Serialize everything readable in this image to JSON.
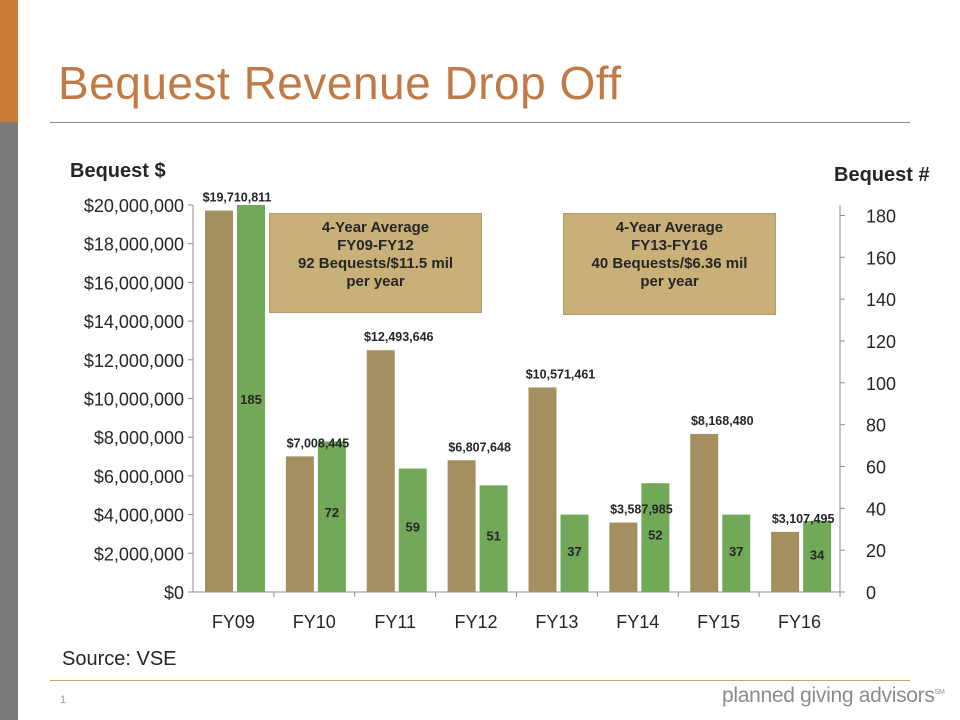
{
  "slide": {
    "title": "Bequest Revenue Drop Off",
    "source": "Source: VSE",
    "page_number": "1",
    "brand": "planned giving advisors",
    "brand_mark": "SM"
  },
  "colors": {
    "accent": "#cc7a37",
    "sidebar": "#7a7a7a",
    "title": "#c17a45",
    "dollars_series": "#a38f5f",
    "count_series": "#71a959",
    "note_fill": "#c8b078"
  },
  "chart_data": {
    "type": "bar",
    "categories": [
      "FY09",
      "FY10",
      "FY11",
      "FY12",
      "FY13",
      "FY14",
      "FY15",
      "FY16"
    ],
    "left_axis": {
      "label": "Bequest $",
      "ylim": [
        0,
        20000000
      ],
      "ticks": [
        "$0",
        "$2,000,000",
        "$4,000,000",
        "$6,000,000",
        "$8,000,000",
        "$10,000,000",
        "$12,000,000",
        "$14,000,000",
        "$16,000,000",
        "$18,000,000",
        "$20,000,000"
      ]
    },
    "right_axis": {
      "label": "Bequest #",
      "ylim": [
        0,
        185
      ],
      "ticks": [
        "0",
        "20",
        "40",
        "60",
        "80",
        "100",
        "120",
        "140",
        "160",
        "180"
      ]
    },
    "series": [
      {
        "axis": "left",
        "color": "#a38f5f",
        "values": [
          19710811,
          7008445,
          12493646,
          6807648,
          10571461,
          3587985,
          8168480,
          3107495
        ],
        "labels": [
          "$19,710,811",
          "$7,008,445",
          "$12,493,646",
          "$6,807,648",
          "$10,571,461",
          "$3,587,985",
          "$8,168,480",
          "$3,107,495"
        ]
      },
      {
        "axis": "right",
        "color": "#71a959",
        "values": [
          185,
          72,
          59,
          51,
          37,
          52,
          37,
          34
        ],
        "labels": [
          "185",
          "72",
          "59",
          "51",
          "37",
          "52",
          "37",
          "34"
        ]
      }
    ],
    "annotations": [
      {
        "lines": [
          "4-Year Average",
          "FY09-FY12",
          "92 Bequests/$11.5 mil",
          "per year"
        ]
      },
      {
        "lines": [
          "4-Year Average",
          "FY13-FY16",
          "40 Bequests/$6.36 mil",
          "per year"
        ]
      }
    ],
    "grid": false,
    "legend": "none"
  }
}
